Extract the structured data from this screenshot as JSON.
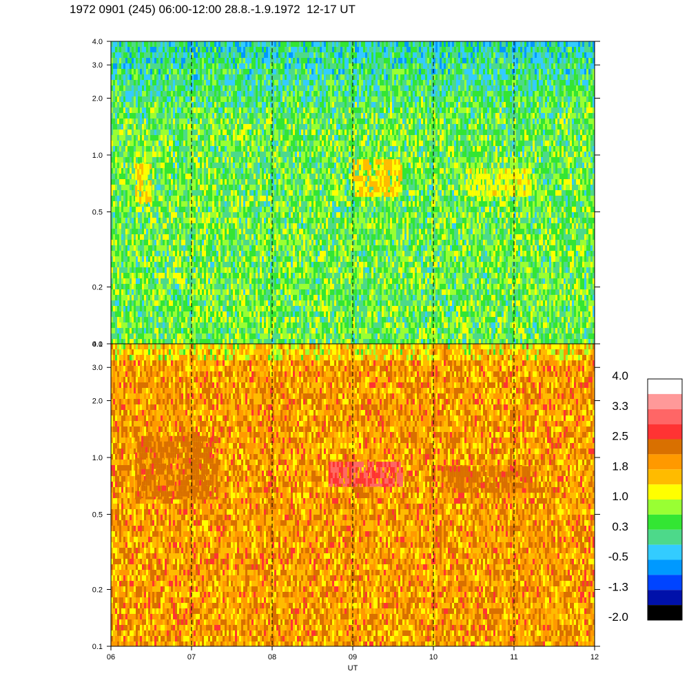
{
  "title": "1972 0901 (245) 06:00-12:00 28.8.-1.9.1972  12-17 UT",
  "chart_data": {
    "type": "heatmap",
    "xlabel": "UT",
    "x_ticks": [
      "06",
      "07",
      "08",
      "09",
      "10",
      "11",
      "12"
    ],
    "x_range": [
      6,
      12
    ],
    "y_scale": "log",
    "y_range": [
      0.1,
      4.0
    ],
    "y_ticks": [
      {
        "value": 0.1,
        "label": "0.1"
      },
      {
        "value": 0.2,
        "label": "0.2"
      },
      {
        "value": 0.5,
        "label": "0.5"
      },
      {
        "value": 1.0,
        "label": "1.0"
      },
      {
        "value": 2.0,
        "label": "2.0"
      },
      {
        "value": 3.0,
        "label": "3.0"
      },
      {
        "value": 4.0,
        "label": "4.0"
      }
    ],
    "dashed_hour_lines": [
      7,
      8,
      9,
      10,
      11
    ],
    "panels": [
      {
        "name": "upper",
        "dominant_level": 0.5,
        "intense_bands": [
          {
            "x_from": 6.3,
            "x_to": 6.5,
            "y_from": 0.55,
            "y_to": 0.9,
            "level": 1.3
          },
          {
            "x_from": 9.0,
            "x_to": 9.6,
            "y_from": 0.6,
            "y_to": 0.95,
            "level": 1.4
          },
          {
            "x_from": 10.4,
            "x_to": 11.2,
            "y_from": 0.6,
            "y_to": 0.85,
            "level": 1.2
          }
        ]
      },
      {
        "name": "lower",
        "dominant_level": 1.9,
        "intense_bands": [
          {
            "x_from": 6.3,
            "x_to": 7.3,
            "y_from": 0.6,
            "y_to": 1.3,
            "level": 2.3
          },
          {
            "x_from": 8.7,
            "x_to": 9.6,
            "y_from": 0.7,
            "y_to": 0.95,
            "level": 2.9
          },
          {
            "x_from": 10.1,
            "x_to": 11.3,
            "y_from": 0.65,
            "y_to": 0.9,
            "level": 2.3
          }
        ]
      }
    ],
    "colorbar": {
      "labels": [
        "4.0",
        "3.3",
        "2.5",
        "1.8",
        "1.0",
        "0.3",
        "-0.5",
        "-1.3",
        "-2.0"
      ],
      "colors_top_to_bottom": [
        "#ffffff",
        "#ff9999",
        "#ff6666",
        "#ff3333",
        "#d97000",
        "#ff9900",
        "#ffbb00",
        "#ffff00",
        "#99ff33",
        "#33e633",
        "#4dd98a",
        "#33ccff",
        "#0099ff",
        "#0044ff",
        "#0011aa",
        "#000000"
      ]
    }
  }
}
